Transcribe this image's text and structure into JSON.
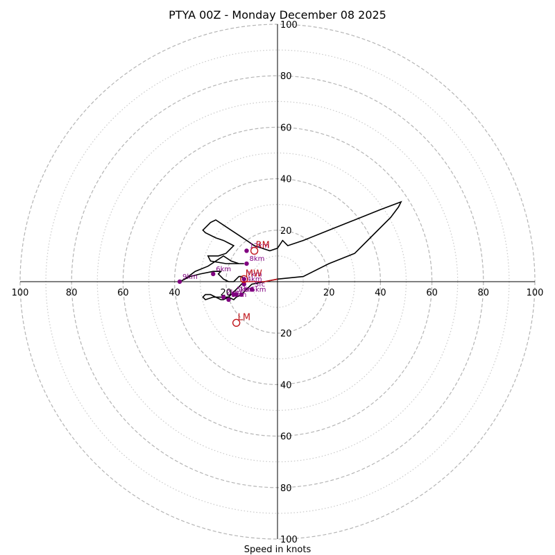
{
  "chart_data": {
    "type": "hodograph",
    "title": "PTYA 00Z - Monday December 08 2025",
    "xlabel": "Speed in knots",
    "xlim": [
      -100,
      100
    ],
    "ylim": [
      -100,
      100
    ],
    "tick_labels": [
      "100",
      "80",
      "60",
      "40",
      "20",
      "20",
      "40",
      "60",
      "80",
      "100"
    ],
    "ring_major": [
      20,
      40,
      60,
      80,
      100
    ],
    "ring_minor": [
      10,
      30,
      50,
      70,
      90
    ],
    "colors": {
      "trace": "#000000",
      "height_marker": "#800080",
      "motion_marker": "#c0141a"
    },
    "trace": [
      [
        -10,
        -1
      ],
      [
        -12,
        -3
      ],
      [
        -14,
        -5
      ],
      [
        -16,
        -6
      ],
      [
        -17,
        -7
      ],
      [
        -19,
        -6
      ],
      [
        -21,
        -7
      ],
      [
        -22,
        -7
      ],
      [
        -24,
        -6
      ],
      [
        -26,
        -5
      ],
      [
        -28,
        -5
      ],
      [
        -29,
        -6
      ],
      [
        -28,
        -7
      ],
      [
        -25,
        -6
      ],
      [
        -22,
        -6
      ],
      [
        -19,
        -6
      ],
      [
        -18,
        -5
      ],
      [
        -17,
        -4
      ],
      [
        -16,
        -3
      ],
      [
        -15,
        -2
      ],
      [
        -14,
        -1
      ],
      [
        -13,
        0
      ],
      [
        -13,
        1
      ],
      [
        -14,
        2
      ],
      [
        -15,
        2
      ],
      [
        -16,
        1
      ],
      [
        -17,
        0
      ],
      [
        -19,
        0
      ],
      [
        -21,
        1
      ],
      [
        -22,
        2
      ],
      [
        -23,
        3
      ],
      [
        -22,
        4
      ],
      [
        -25,
        4
      ],
      [
        -30,
        3
      ],
      [
        -34,
        2
      ],
      [
        -38,
        0
      ],
      [
        -36,
        1
      ],
      [
        -32,
        4
      ],
      [
        -27,
        6
      ],
      [
        -24,
        8
      ],
      [
        -21,
        10
      ],
      [
        -18,
        8
      ],
      [
        -15,
        7
      ],
      [
        -13,
        7
      ],
      [
        -20,
        7
      ],
      [
        -26,
        8
      ],
      [
        -27,
        10
      ],
      [
        -23,
        10
      ],
      [
        -20,
        11
      ],
      [
        -17,
        14
      ],
      [
        -19,
        15
      ],
      [
        -21,
        16
      ],
      [
        -24,
        17
      ],
      [
        -28,
        19
      ],
      [
        -29,
        20
      ],
      [
        -28,
        21
      ],
      [
        -26,
        23
      ],
      [
        -24,
        24
      ],
      [
        -21,
        22
      ],
      [
        -18,
        20
      ],
      [
        -15,
        18
      ],
      [
        -12,
        16
      ],
      [
        -9,
        14
      ],
      [
        -6,
        13
      ],
      [
        -3,
        12
      ],
      [
        0,
        13
      ],
      [
        2,
        16
      ],
      [
        4,
        14
      ],
      [
        10,
        16
      ],
      [
        20,
        20
      ],
      [
        30,
        24
      ],
      [
        40,
        28
      ],
      [
        48,
        31
      ],
      [
        47,
        29
      ],
      [
        44,
        25
      ],
      [
        38,
        19
      ],
      [
        30,
        11
      ],
      [
        20,
        7
      ],
      [
        10,
        2
      ],
      [
        0,
        1
      ],
      [
        -10,
        -1
      ]
    ],
    "red_segment": [
      [
        -14,
        0
      ],
      [
        -10,
        0
      ],
      [
        -5,
        0
      ],
      [
        0,
        1
      ]
    ],
    "height_markers": [
      {
        "label": "Sfc",
        "x": -10,
        "y": -3
      },
      {
        "label": "0.5km",
        "x": -14,
        "y": -5
      },
      {
        "label": "1km",
        "x": -16,
        "y": -5
      },
      {
        "label": "2km",
        "x": -21,
        "y": -6
      },
      {
        "label": "3km",
        "x": -19,
        "y": -7
      },
      {
        "label": "4km",
        "x": -13,
        "y": -1
      },
      {
        "label": "5km",
        "x": -17,
        "y": -5
      },
      {
        "label": "6km",
        "x": -25,
        "y": 3
      },
      {
        "label": "7km",
        "x": -13,
        "y": 1
      },
      {
        "label": "8km",
        "x": -12,
        "y": 7
      },
      {
        "label": "9km",
        "x": -38,
        "y": 0
      },
      {
        "label": "12km",
        "x": -12,
        "y": 12
      }
    ],
    "storm_motions": [
      {
        "label": "RM",
        "x": -9,
        "y": 12
      },
      {
        "label": "LM",
        "x": -16,
        "y": -16
      },
      {
        "label": "MW",
        "x": -13,
        "y": 1
      }
    ]
  }
}
